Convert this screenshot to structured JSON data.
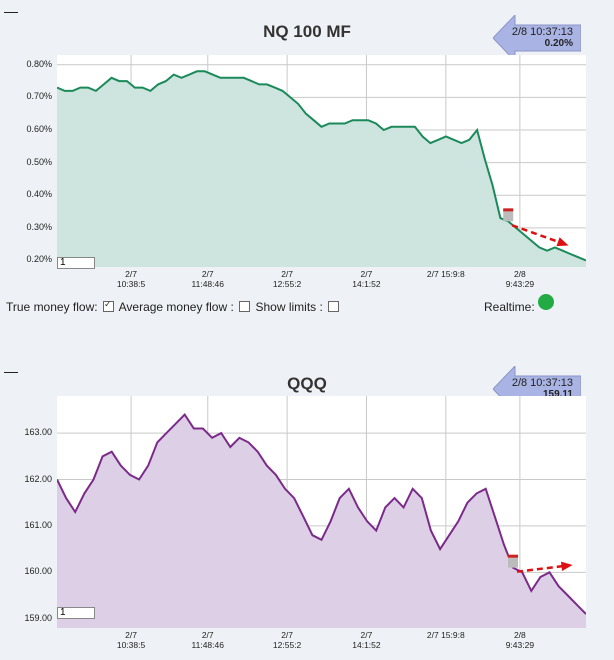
{
  "chart_data": [
    {
      "type": "area",
      "title": "NQ 100 MF",
      "yticks": [
        "0.80%",
        "0.70%",
        "0.60%",
        "0.50%",
        "0.40%",
        "0.30%",
        "0.20%"
      ],
      "ylim": [
        0.18,
        0.83
      ],
      "xticks": [
        [
          "2/7",
          "10:38:5"
        ],
        [
          "2/7",
          "11:48:46"
        ],
        [
          "2/7",
          "12:55:2"
        ],
        [
          "2/7",
          "14:1:52"
        ],
        [
          "2/7 15:9:8",
          ""
        ],
        [
          "2/8",
          "9:43:29"
        ]
      ],
      "y": [
        0.73,
        0.72,
        0.72,
        0.73,
        0.73,
        0.72,
        0.74,
        0.76,
        0.75,
        0.75,
        0.73,
        0.73,
        0.72,
        0.74,
        0.75,
        0.77,
        0.76,
        0.77,
        0.78,
        0.78,
        0.77,
        0.76,
        0.76,
        0.76,
        0.76,
        0.75,
        0.74,
        0.74,
        0.73,
        0.72,
        0.7,
        0.68,
        0.65,
        0.63,
        0.61,
        0.62,
        0.62,
        0.62,
        0.63,
        0.63,
        0.63,
        0.62,
        0.6,
        0.61,
        0.61,
        0.61,
        0.61,
        0.58,
        0.56,
        0.57,
        0.58,
        0.57,
        0.56,
        0.57,
        0.6,
        0.51,
        0.43,
        0.33,
        0.32,
        0.3,
        0.28,
        0.26,
        0.24,
        0.23,
        0.24,
        0.23,
        0.22,
        0.21,
        0.2
      ],
      "series_color": "#1b8a5a",
      "fill_color": "#cde4df",
      "callout": {
        "time": "2/8 10:37:13",
        "value": "0.20%"
      },
      "zoom_value": "1"
    },
    {
      "type": "area",
      "title": "QQQ",
      "yticks": [
        "163.00",
        "162.00",
        "161.00",
        "160.00",
        "159.00"
      ],
      "ylim": [
        158.8,
        163.8
      ],
      "xticks": [
        [
          "2/7",
          "10:38:5"
        ],
        [
          "2/7",
          "11:48:46"
        ],
        [
          "2/7",
          "12:55:2"
        ],
        [
          "2/7",
          "14:1:52"
        ],
        [
          "2/7 15:9:8",
          ""
        ],
        [
          "2/8",
          "9:43:29"
        ]
      ],
      "y": [
        162.0,
        161.6,
        161.3,
        161.7,
        162.0,
        162.5,
        162.6,
        162.3,
        162.1,
        162.0,
        162.3,
        162.8,
        163.0,
        163.2,
        163.4,
        163.1,
        163.1,
        162.9,
        163.0,
        162.7,
        162.9,
        162.8,
        162.6,
        162.3,
        162.1,
        161.8,
        161.6,
        161.2,
        160.8,
        160.7,
        161.1,
        161.6,
        161.8,
        161.4,
        161.1,
        160.9,
        161.4,
        161.6,
        161.4,
        161.8,
        161.6,
        160.9,
        160.5,
        160.8,
        161.1,
        161.5,
        161.7,
        161.8,
        161.2,
        160.6,
        160.1,
        160.0,
        159.6,
        159.9,
        160.0,
        159.7,
        159.5,
        159.3,
        159.1
      ],
      "series_color": "#7b2a8a",
      "fill_color": "#ddd0e6",
      "callout": {
        "time": "2/8 10:37:13",
        "value": "159.11"
      },
      "zoom_value": "1"
    }
  ],
  "controls": {
    "true_money_flow": "True money flow:",
    "average_money_flow": "Average money flow :",
    "show_limits": "Show limits :",
    "realtime": "Realtime:"
  }
}
